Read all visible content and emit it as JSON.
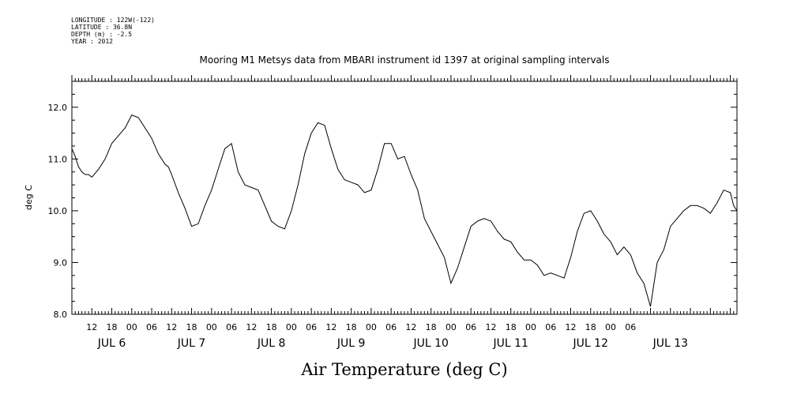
{
  "header": {
    "longitude": "LONGITUDE : 122W(-122)",
    "latitude": "LATITUDE : 36.8N",
    "depth": "DEPTH (m) : -2.5",
    "year": "YEAR : 2012"
  },
  "chart_data": {
    "type": "line",
    "title": "Mooring M1 Metsys data from MBARI instrument id 1397 at original sampling intervals",
    "xlabel": "Air Temperature (deg C)",
    "ylabel": "deg C",
    "ylim": [
      8.0,
      12.5
    ],
    "yticks": [
      "8.0",
      "9.0",
      "10.0",
      "11.0",
      "12.0"
    ],
    "xlim_hours": [
      0,
      200
    ],
    "hour_tick_labels": [
      "12",
      "18",
      "00",
      "06",
      "12",
      "18",
      "00",
      "06",
      "12",
      "18",
      "00",
      "06",
      "12",
      "18",
      "00",
      "06",
      "12",
      "18",
      "00",
      "06",
      "12",
      "18",
      "00",
      "06",
      "12",
      "18",
      "00",
      "06"
    ],
    "day_labels": [
      "JUL  6",
      "JUL  7",
      "JUL  8",
      "JUL  9",
      "JUL 10",
      "JUL 11",
      "JUL 12",
      "JUL 13"
    ],
    "grid": false,
    "series": [
      {
        "x": [
          0,
          1,
          2,
          3,
          4,
          5,
          6,
          8,
          10,
          12,
          14,
          16,
          18,
          20,
          22,
          24,
          26,
          28,
          29,
          30,
          32,
          34,
          36,
          38,
          40,
          42,
          44,
          46,
          48,
          50,
          52,
          54,
          56,
          58,
          60,
          62,
          64,
          66,
          68,
          70,
          72,
          74,
          76,
          78,
          80,
          82,
          84,
          86,
          88,
          90,
          92,
          94,
          96,
          98,
          100,
          102,
          104,
          106,
          108,
          110,
          112,
          114,
          116,
          118,
          120,
          122,
          124,
          126,
          128,
          130,
          132,
          134,
          136,
          138,
          140,
          142,
          144,
          146,
          148,
          150,
          152,
          154,
          156,
          158,
          160,
          162,
          164,
          166,
          168,
          170,
          172,
          174,
          176,
          178,
          180,
          182,
          184,
          186,
          188,
          190,
          192,
          194,
          196,
          198,
          199,
          200
        ],
        "y": [
          11.2,
          11.05,
          10.85,
          10.75,
          10.7,
          10.7,
          10.65,
          10.8,
          11.0,
          11.3,
          11.45,
          11.6,
          11.85,
          11.8,
          11.6,
          11.4,
          11.1,
          10.9,
          10.85,
          10.7,
          10.35,
          10.05,
          9.7,
          9.75,
          10.1,
          10.4,
          10.8,
          11.2,
          11.3,
          10.75,
          10.5,
          10.45,
          10.4,
          10.1,
          9.8,
          9.7,
          9.65,
          10.0,
          10.5,
          11.1,
          11.5,
          11.7,
          11.65,
          11.2,
          10.8,
          10.6,
          10.55,
          10.5,
          10.35,
          10.4,
          10.8,
          11.3,
          11.3,
          11.0,
          11.05,
          10.7,
          10.4,
          9.85,
          9.6,
          9.35,
          9.1,
          8.6,
          8.9,
          9.3,
          9.7,
          9.8,
          9.85,
          9.8,
          9.6,
          9.45,
          9.4,
          9.2,
          9.05,
          9.05,
          8.95,
          8.75,
          8.8,
          8.75,
          8.7,
          9.1,
          9.6,
          9.95,
          10.0,
          9.8,
          9.55,
          9.4,
          9.15,
          9.3,
          9.15,
          8.8,
          8.6,
          8.15,
          9.0,
          9.25,
          9.7,
          9.85,
          10.0,
          10.1,
          10.1,
          10.05,
          9.95,
          10.15,
          10.4,
          10.35,
          10.1,
          10.0
        ]
      }
    ]
  }
}
